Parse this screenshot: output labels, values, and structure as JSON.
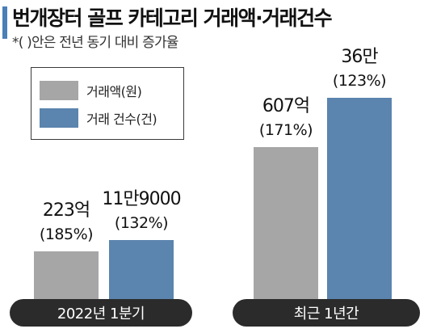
{
  "title": "번개장터 골프 카테고리 거래액·거래건수",
  "subtitle": "*(  )안은 전년 동기 대비 증가율",
  "chart_data": {
    "type": "bar",
    "categories": [
      "2022년 1분기",
      "최근 1년간"
    ],
    "series": [
      {
        "name": "거래액(원)",
        "color": "#a6a6a6",
        "values_display": [
          "223억",
          "607억"
        ],
        "growth": [
          "(185%)",
          "(171%)"
        ]
      },
      {
        "name": "거래 건수(건)",
        "color": "#5b84ae",
        "values_display": [
          "11만9000",
          "36만"
        ],
        "growth": [
          "(132%)",
          "(123%)"
        ]
      }
    ],
    "values_numeric": {
      "거래액(원)_억": [
        223,
        607
      ],
      "거래 건수(건)": [
        119000,
        360000
      ]
    },
    "category_bar_color": "#2b2b2b",
    "category_text_color": "#ffffff"
  }
}
